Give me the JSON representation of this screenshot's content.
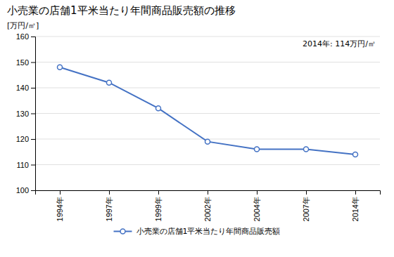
{
  "chart_data": {
    "type": "line",
    "title": "小売業の店舗1平米当たり年間商品販売額の推移",
    "ylabel": "[万円/㎡]",
    "annotation": "2014年: 114万円/㎡",
    "categories": [
      "1994年",
      "1997年",
      "1999年",
      "2002年",
      "2004年",
      "2007年",
      "2014年"
    ],
    "series": [
      {
        "name": "小売業の店舗1平米当たり年間商品販売額",
        "color": "#4472C4",
        "marker": "circle",
        "line_style": "solid",
        "values": [
          148,
          142,
          132,
          119,
          116,
          116,
          114
        ]
      }
    ],
    "ylim": [
      100,
      160
    ],
    "yticks": [
      100,
      110,
      120,
      130,
      140,
      150,
      160
    ],
    "grid": true,
    "legend": "bottom"
  }
}
